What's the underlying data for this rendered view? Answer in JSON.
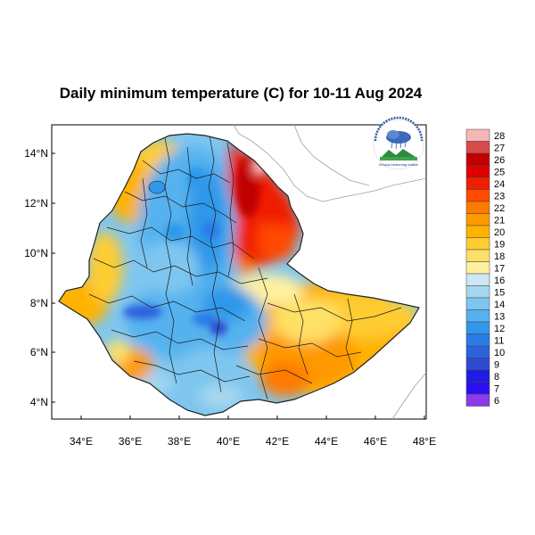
{
  "title": "Daily minimum temperature (C) for 10-11 Aug 2024",
  "x_ticks": [
    "34°E",
    "36°E",
    "38°E",
    "40°E",
    "42°E",
    "44°E",
    "46°E",
    "48°E"
  ],
  "y_ticks": [
    "14°N",
    "12°N",
    "10°N",
    "8°N",
    "6°N",
    "4°N"
  ],
  "colorbar": {
    "labels": [
      "28",
      "27",
      "26",
      "25",
      "24",
      "23",
      "22",
      "21",
      "20",
      "19",
      "18",
      "17",
      "16",
      "15",
      "14",
      "13",
      "12",
      "11",
      "10",
      "9",
      "8",
      "7",
      "6"
    ],
    "colors": [
      "#f7b6b6",
      "#d94a4a",
      "#c00000",
      "#dd0000",
      "#f01f00",
      "#ff4a00",
      "#ff7a00",
      "#ff9900",
      "#ffb300",
      "#ffcc33",
      "#ffe066",
      "#fff0a0",
      "#cde7f5",
      "#a6d7f0",
      "#7ec6ef",
      "#55b2ef",
      "#2f98ea",
      "#2a7ce6",
      "#2d62dd",
      "#2e4bd2",
      "#1d1de6",
      "#2a10f0",
      "#8a3ae6"
    ]
  },
  "logo": {
    "name": "Ethiopian Meteorology Institute"
  }
}
